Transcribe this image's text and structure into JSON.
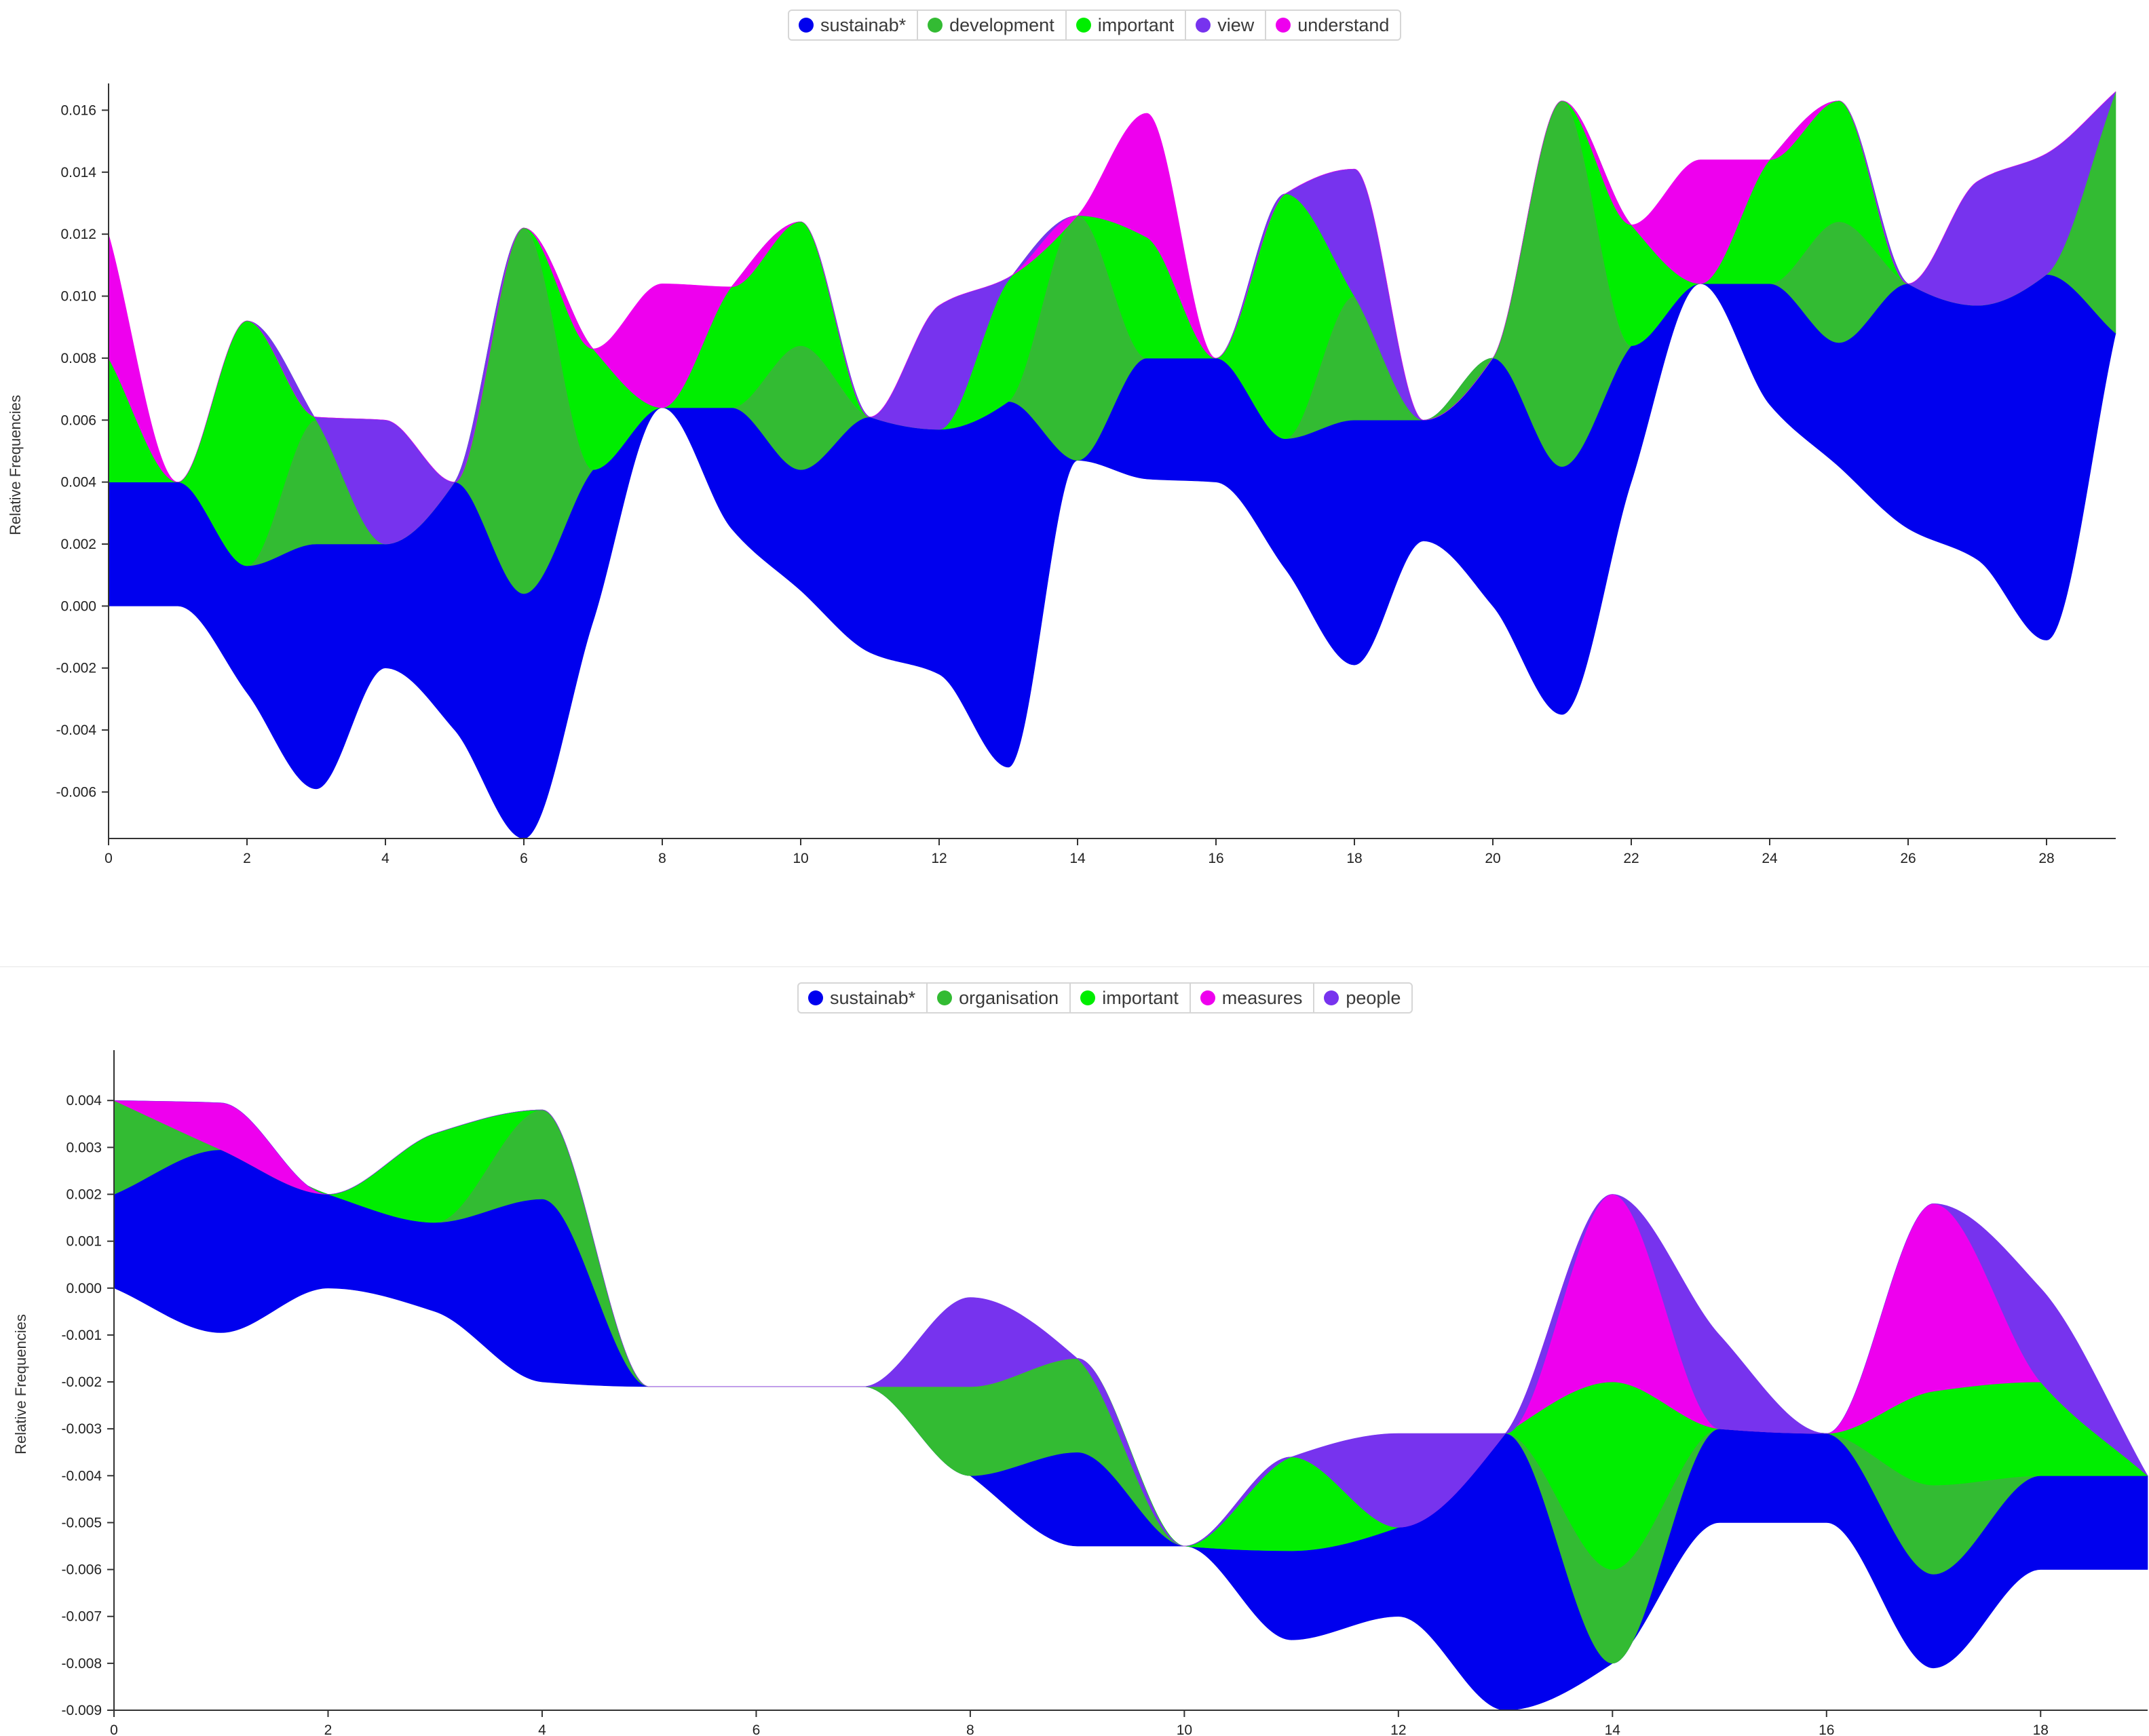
{
  "chart_data": [
    {
      "type": "area",
      "subtype": "stacked-streamgraph",
      "ylabel": "Relative Frequencies",
      "xlabel": "",
      "ylim": [
        -0.0075,
        0.0166
      ],
      "xlim": [
        0,
        29
      ],
      "x_ticks": [
        "0",
        "2",
        "4",
        "6",
        "8",
        "10",
        "12",
        "14",
        "16",
        "18",
        "20",
        "22",
        "24",
        "26",
        "28"
      ],
      "y_ticks": [
        "-0.006",
        "-0.004",
        "-0.002",
        "0.000",
        "0.002",
        "0.004",
        "0.006",
        "0.008",
        "0.010",
        "0.012",
        "0.014",
        "0.016"
      ],
      "legend_position": "top-center",
      "x": [
        0,
        1,
        2,
        3,
        4,
        5,
        6,
        7,
        8,
        9,
        10,
        11,
        12,
        13,
        14,
        15,
        16,
        17,
        18,
        19,
        20,
        21,
        22,
        23,
        24,
        25,
        26,
        27,
        28,
        29
      ],
      "baseline": [
        0,
        0,
        -0.0028,
        -0.0059,
        -0.002,
        -0.004,
        -0.0075,
        -0.0005,
        0.0064,
        0.0025,
        0.0005,
        -0.0015,
        -0.0022,
        -0.0052,
        0.0047,
        0.0041,
        0.004,
        0.0012,
        -0.0019,
        0.0021,
        0.0,
        -0.0035,
        0.004,
        0.0104,
        0.0065,
        0.0045,
        0.0025,
        0.0015,
        -0.0011,
        0.0088
      ],
      "series": [
        {
          "name": "sustainab*",
          "values": [
            0.004,
            0.004,
            0.0041,
            0.0079,
            0.004,
            0.008,
            0.0079,
            0.0049,
            0,
            0.0039,
            0.0039,
            0.0076,
            0.0079,
            0.0118,
            0,
            0.0039,
            0.004,
            0.0042,
            0.0079,
            0.0039,
            0.008,
            0.008,
            0.0044,
            0,
            0.0039,
            0.004,
            0.0079,
            0.0082,
            0.0118,
            0
          ]
        },
        {
          "name": "development",
          "values": [
            0,
            0,
            0,
            0.004,
            0,
            0,
            0.0118,
            0,
            0,
            0,
            0.004,
            0,
            0,
            0,
            0.0079,
            0,
            0,
            0,
            0.004,
            0,
            0,
            0.0118,
            0,
            0,
            0,
            0.0039,
            0,
            0,
            0,
            0.0078
          ]
        },
        {
          "name": "important",
          "values": [
            0.004,
            0,
            0.0079,
            0,
            0,
            0,
            0,
            0.0039,
            0,
            0.0039,
            0.004,
            0,
            0,
            0.0039,
            0,
            0.0039,
            0,
            0.0079,
            0,
            0,
            0,
            0,
            0.0039,
            0,
            0.004,
            0.0039,
            0,
            0,
            0,
            0
          ]
        },
        {
          "name": "view",
          "values": [
            0,
            0,
            0,
            0.0001,
            0.004,
            0,
            0,
            0,
            0,
            0,
            0,
            0,
            0.004,
            0.0001,
            0,
            0,
            0,
            0,
            0.0041,
            0,
            0,
            0,
            0,
            0,
            0,
            0,
            0,
            0.004,
            0.0039,
            0
          ]
        },
        {
          "name": "understand",
          "values": [
            0.004,
            0,
            0,
            0,
            0,
            0,
            0,
            0,
            0.004,
            0,
            0,
            0,
            0,
            0,
            0,
            0.004,
            0,
            0,
            0,
            0,
            0,
            0,
            0,
            0.004,
            0,
            0,
            0,
            0,
            0,
            0
          ]
        }
      ]
    },
    {
      "type": "area",
      "subtype": "stacked-streamgraph",
      "ylabel": "Relative Frequencies",
      "xlabel": "",
      "ylim": [
        -0.009,
        0.0049
      ],
      "xlim": [
        0,
        19
      ],
      "x_ticks": [
        "0",
        "2",
        "4",
        "6",
        "8",
        "10",
        "12",
        "14",
        "16",
        "18"
      ],
      "y_ticks": [
        "-0.009",
        "-0.008",
        "-0.007",
        "-0.006",
        "-0.005",
        "-0.004",
        "-0.003",
        "-0.002",
        "-0.001",
        "0.000",
        "0.001",
        "0.002",
        "0.003",
        "0.004"
      ],
      "legend_position": "top-center",
      "x": [
        0,
        1,
        2,
        3,
        4,
        5,
        6,
        7,
        8,
        9,
        10,
        11,
        12,
        13,
        14,
        15,
        16,
        17,
        18,
        19
      ],
      "baseline": [
        0,
        -0.00095,
        0,
        -0.0005,
        -0.002,
        -0.0021,
        -0.0021,
        -0.0021,
        -0.004,
        -0.0055,
        -0.0055,
        -0.0075,
        -0.007,
        -0.009,
        -0.008,
        -0.005,
        -0.005,
        -0.0081,
        -0.006,
        -0.006
      ],
      "series": [
        {
          "name": "sustainab*",
          "values": [
            0.002,
            0.0039,
            0.002,
            0.0019,
            0.0039,
            0,
            0,
            0,
            0,
            0.002,
            0,
            0.0019,
            0.0019,
            0.0059,
            0,
            0.002,
            0.0019,
            0.002,
            0.002,
            0.002
          ]
        },
        {
          "name": "organisation",
          "values": [
            0.002,
            0,
            0,
            0,
            0.0019,
            0,
            0,
            0,
            0.0019,
            0.002,
            0,
            0,
            0,
            0,
            0.002,
            0,
            0,
            0.0019,
            0,
            0
          ]
        },
        {
          "name": "important",
          "values": [
            0,
            0,
            0,
            0.0019,
            0,
            0,
            0,
            0,
            0,
            0,
            0,
            0.002,
            0,
            0,
            0.004,
            0,
            0,
            0.002,
            0.002,
            0
          ]
        },
        {
          "name": "measures",
          "values": [
            0,
            0.001,
            0,
            0,
            0,
            0,
            0,
            0,
            0,
            0,
            0,
            0,
            0,
            0,
            0.004,
            0,
            0,
            0.004,
            0,
            0
          ]
        },
        {
          "name": "people",
          "values": [
            0,
            0,
            0,
            0,
            0,
            0,
            0,
            0,
            0.0019,
            0,
            0,
            0,
            0.002,
            0,
            0,
            0.002,
            0,
            0,
            0.002,
            0
          ]
        }
      ]
    }
  ],
  "colors": {
    "sustainab*": "#0000ee",
    "development": "#33bb33",
    "organisation": "#33bb33",
    "important": "#00ee00",
    "view": "#7733ee",
    "people": "#7733ee",
    "understand": "#ee00ee",
    "measures": "#ee00ee"
  },
  "legends": [
    [
      "sustainab*",
      "development",
      "important",
      "view",
      "understand"
    ],
    [
      "sustainab*",
      "organisation",
      "important",
      "measures",
      "people"
    ]
  ]
}
